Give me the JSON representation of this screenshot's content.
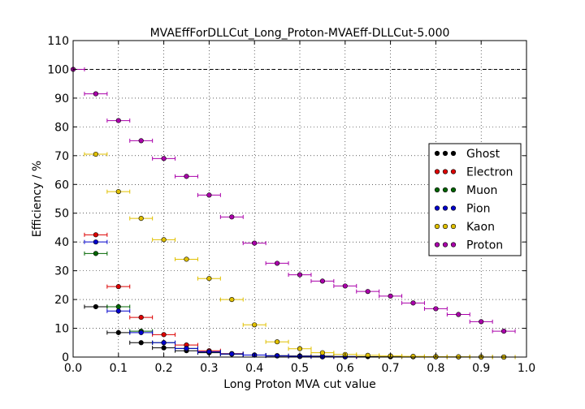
{
  "chart_data": {
    "type": "scatter",
    "title": "MVAEffForDLLCut_Long_Proton-MVAEff-DLLCut-5.000",
    "xlabel": "Long Proton MVA cut value",
    "ylabel": "Efficiency / %",
    "xlim": [
      0.0,
      1.0
    ],
    "ylim": [
      0,
      110
    ],
    "xticks": [
      "0.0",
      "0.1",
      "0.2",
      "0.3",
      "0.4",
      "0.5",
      "0.6",
      "0.7",
      "0.8",
      "0.9",
      "1.0"
    ],
    "yticks": [
      "0",
      "10",
      "20",
      "30",
      "40",
      "50",
      "60",
      "70",
      "80",
      "90",
      "100",
      "110"
    ],
    "grid": true,
    "reference_line": 100,
    "legend_position": "center-right",
    "x_error": 0.025,
    "series": [
      {
        "name": "Ghost",
        "color": "#000000",
        "points": [
          [
            0.05,
            17.5
          ],
          [
            0.1,
            8.5
          ],
          [
            0.15,
            5.0
          ],
          [
            0.2,
            3.2
          ],
          [
            0.25,
            2.2
          ],
          [
            0.3,
            1.5
          ],
          [
            0.35,
            1.0
          ],
          [
            0.4,
            0.7
          ],
          [
            0.45,
            0.5
          ],
          [
            0.5,
            0.4
          ],
          [
            0.55,
            0.3
          ],
          [
            0.6,
            0.2
          ],
          [
            0.65,
            0.15
          ],
          [
            0.7,
            0.1
          ],
          [
            0.75,
            0.1
          ],
          [
            0.8,
            0.05
          ],
          [
            0.85,
            0.05
          ],
          [
            0.9,
            0.0
          ],
          [
            0.95,
            0.0
          ]
        ]
      },
      {
        "name": "Electron",
        "color": "#dd0000",
        "points": [
          [
            0.05,
            42.5
          ],
          [
            0.1,
            24.5
          ],
          [
            0.15,
            13.8
          ],
          [
            0.2,
            7.8
          ],
          [
            0.25,
            4.2
          ],
          [
            0.3,
            2.2
          ],
          [
            0.35,
            1.2
          ],
          [
            0.4,
            0.7
          ],
          [
            0.45,
            0.4
          ],
          [
            0.5,
            0.2
          ],
          [
            0.55,
            0.1
          ],
          [
            0.6,
            0.05
          ]
        ]
      },
      {
        "name": "Muon",
        "color": "#006600",
        "points": [
          [
            0.05,
            36.0
          ],
          [
            0.1,
            17.5
          ],
          [
            0.15,
            9.0
          ],
          [
            0.2,
            5.0
          ],
          [
            0.25,
            3.0
          ],
          [
            0.3,
            1.8
          ],
          [
            0.35,
            1.1
          ],
          [
            0.4,
            0.7
          ],
          [
            0.45,
            0.4
          ],
          [
            0.5,
            0.2
          ],
          [
            0.55,
            0.1
          ]
        ]
      },
      {
        "name": "Pion",
        "color": "#0000cc",
        "points": [
          [
            0.05,
            40.0
          ],
          [
            0.1,
            16.0
          ],
          [
            0.15,
            8.5
          ],
          [
            0.2,
            5.0
          ],
          [
            0.25,
            3.0
          ],
          [
            0.3,
            1.8
          ],
          [
            0.35,
            1.1
          ],
          [
            0.4,
            0.7
          ],
          [
            0.45,
            0.4
          ],
          [
            0.5,
            0.25
          ],
          [
            0.55,
            0.15
          ],
          [
            0.6,
            0.1
          ]
        ]
      },
      {
        "name": "Kaon",
        "color": "#e0c000",
        "points": [
          [
            0.05,
            70.5
          ],
          [
            0.1,
            57.5
          ],
          [
            0.15,
            48.2
          ],
          [
            0.2,
            40.8
          ],
          [
            0.25,
            34.0
          ],
          [
            0.3,
            27.3
          ],
          [
            0.35,
            20.0
          ],
          [
            0.4,
            11.2
          ],
          [
            0.45,
            5.3
          ],
          [
            0.5,
            2.9
          ],
          [
            0.55,
            1.5
          ],
          [
            0.6,
            0.9
          ],
          [
            0.65,
            0.6
          ],
          [
            0.7,
            0.4
          ],
          [
            0.75,
            0.25
          ],
          [
            0.8,
            0.15
          ],
          [
            0.85,
            0.1
          ],
          [
            0.9,
            0.05
          ],
          [
            0.95,
            0.0
          ]
        ]
      },
      {
        "name": "Proton",
        "color": "#aa00aa",
        "points": [
          [
            0.0,
            100.0
          ],
          [
            0.05,
            91.5
          ],
          [
            0.1,
            82.2
          ],
          [
            0.15,
            75.2
          ],
          [
            0.2,
            69.0
          ],
          [
            0.25,
            62.8
          ],
          [
            0.3,
            56.3
          ],
          [
            0.35,
            48.7
          ],
          [
            0.4,
            39.6
          ],
          [
            0.45,
            32.6
          ],
          [
            0.5,
            28.6
          ],
          [
            0.55,
            26.4
          ],
          [
            0.6,
            24.7
          ],
          [
            0.65,
            22.8
          ],
          [
            0.7,
            21.2
          ],
          [
            0.75,
            18.8
          ],
          [
            0.8,
            16.8
          ],
          [
            0.85,
            14.8
          ],
          [
            0.9,
            12.3
          ],
          [
            0.95,
            9.0
          ]
        ]
      }
    ]
  }
}
